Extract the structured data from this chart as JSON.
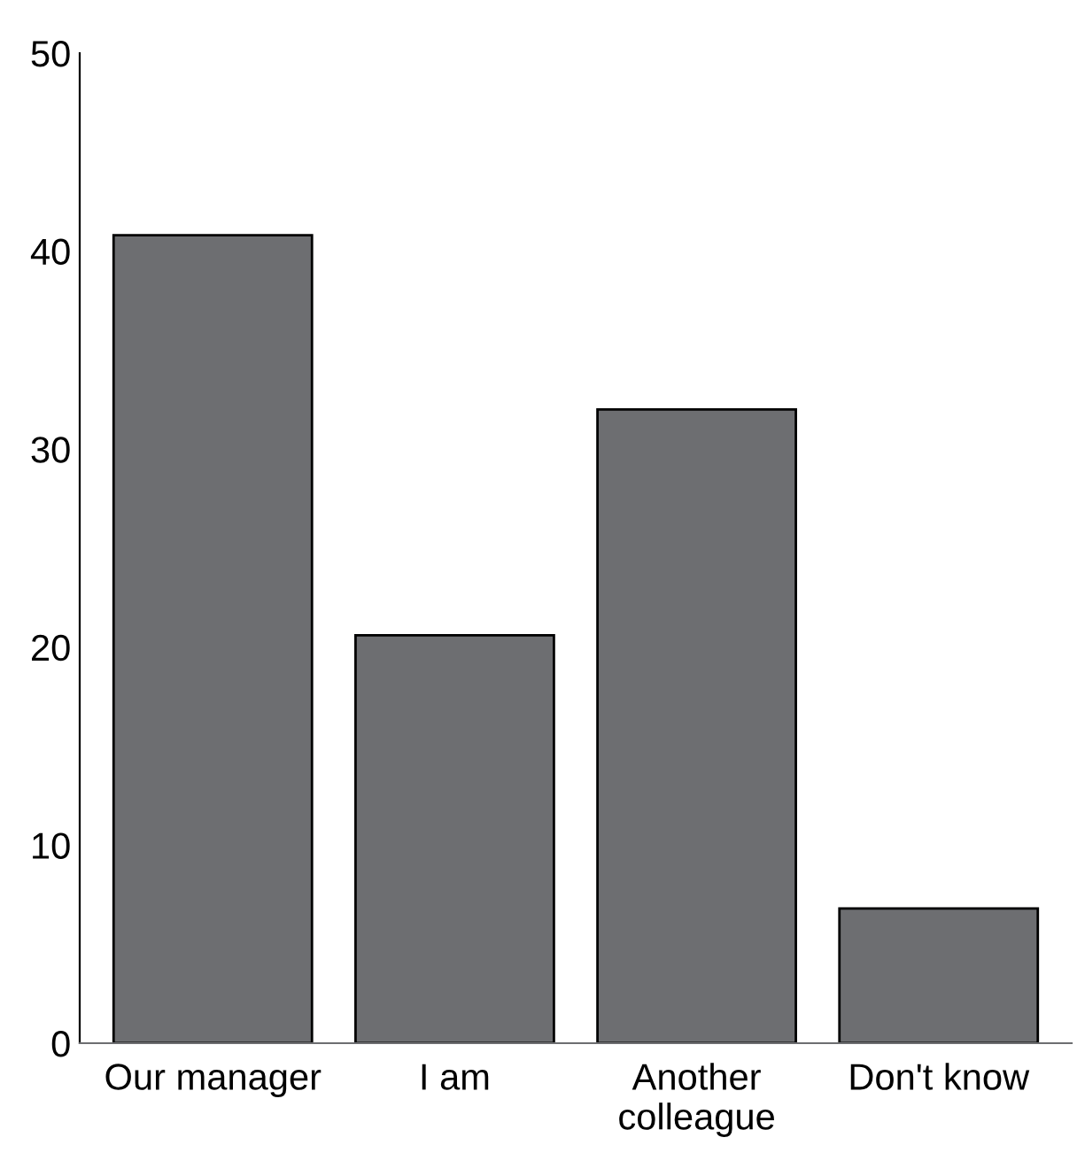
{
  "chart_data": {
    "type": "bar",
    "categories": [
      "Our manager",
      "I am",
      "Another\ncolleague",
      "Don't know"
    ],
    "values": [
      40.8,
      20.6,
      32.0,
      6.8
    ],
    "color": "#6d6e71",
    "ylim": [
      0,
      50
    ],
    "yticks": [
      0,
      10,
      20,
      30,
      40,
      50
    ],
    "grid": false,
    "legend": false
  }
}
